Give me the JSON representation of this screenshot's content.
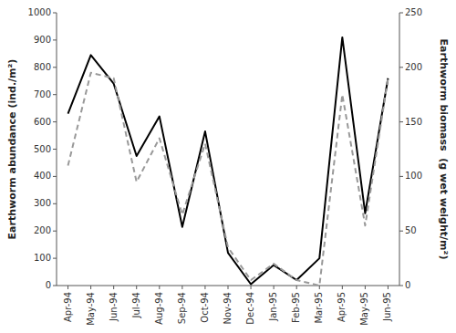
{
  "chart_data": {
    "type": "line",
    "categories": [
      "Apr-94",
      "May-94",
      "Jun-94",
      "Jul-94",
      "Aug-94",
      "Sep-94",
      "Oct-94",
      "Nov-94",
      "Dec-94",
      "Jan-95",
      "Feb-95",
      "Mar-95",
      "Apr-95",
      "May-95",
      "Jun-95"
    ],
    "series": [
      {
        "color": "#000000",
        "line_style": "solid",
        "values": [
          630,
          845,
          740,
          475,
          620,
          215,
          565,
          120,
          5,
          75,
          20,
          100,
          910,
          265,
          760
        ]
      },
      {
        "color": "#999999",
        "line_style": "dashed",
        "axis": "y2",
        "values": [
          110,
          195,
          190,
          95,
          135,
          65,
          130,
          35,
          5,
          20,
          5,
          0,
          175,
          55,
          190
        ]
      }
    ],
    "ylabel": "Earthworm abundance (ind./m²)",
    "y2label": "Earthworm biomass  (g wet weight/m²)",
    "ylim": [
      0,
      1000
    ],
    "yticks": [
      0,
      100,
      200,
      300,
      400,
      500,
      600,
      700,
      800,
      900,
      1000
    ],
    "y2lim": [
      0,
      250
    ],
    "y2ticks": [
      0,
      50,
      100,
      150,
      200,
      250
    ],
    "grid": false
  }
}
